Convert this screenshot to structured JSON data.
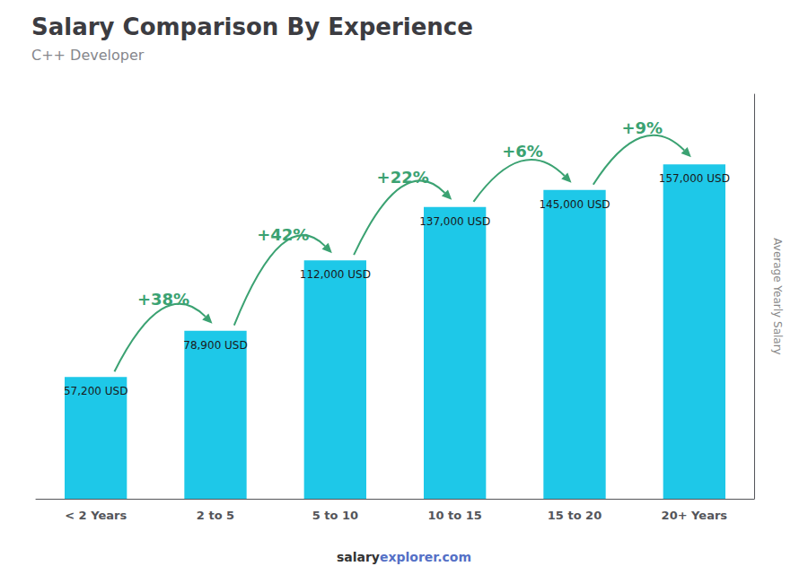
{
  "chart_data": {
    "type": "bar",
    "title": "Salary Comparison By Experience",
    "subtitle": "C++ Developer",
    "categories": [
      "< 2 Years",
      "2 to 5",
      "5 to 10",
      "10 to 15",
      "15 to 20",
      "20+ Years"
    ],
    "values": [
      57200,
      78900,
      112000,
      137000,
      145000,
      157000
    ],
    "value_labels": [
      "57,200 USD",
      "78,900 USD",
      "112,000 USD",
      "137,000 USD",
      "145,000 USD",
      "157,000 USD"
    ],
    "data_labels": true,
    "annotations": [
      "+38%",
      "+42%",
      "+22%",
      "+6%",
      "+9%"
    ],
    "ylabel": "Average Yearly Salary",
    "footer": [
      "salary",
      "explorer.com"
    ],
    "color": "#1EC8E8",
    "ylim": [
      0,
      190000
    ],
    "tick_labels": "x",
    "grid": false
  }
}
